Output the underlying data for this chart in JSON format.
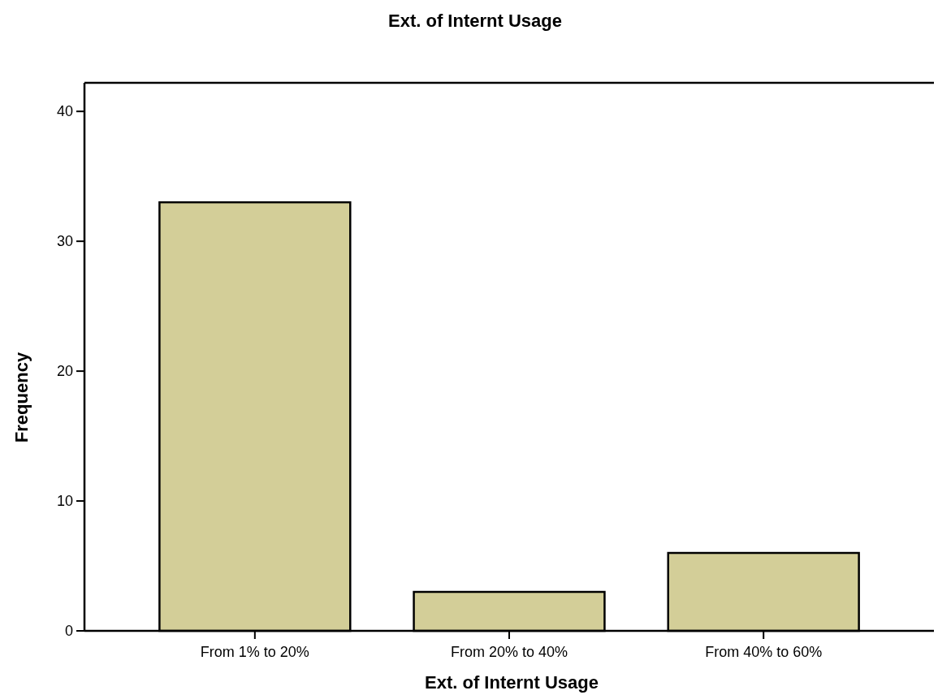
{
  "chart_data": {
    "type": "bar",
    "title": "Ext. of Internt Usage",
    "xlabel": "Ext. of Internt Usage",
    "ylabel": "Frequency",
    "categories": [
      "From 1% to 20%",
      "From 20% to 40%",
      "From 40% to 60%"
    ],
    "values": [
      33,
      3,
      6
    ],
    "color": "#d3ce98",
    "ylim": [
      0,
      42.2
    ],
    "yticks": [
      0,
      10,
      20,
      30,
      40
    ],
    "grid": false
  }
}
